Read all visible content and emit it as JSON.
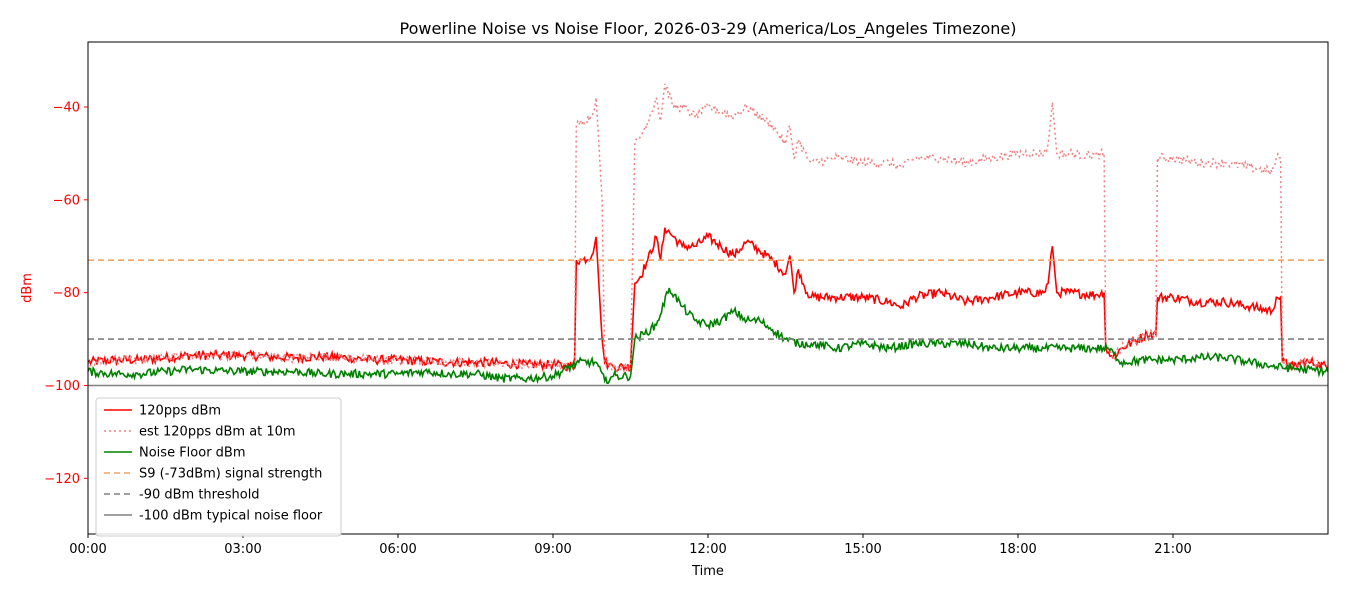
{
  "chart_data": {
    "type": "line",
    "title": "Powerline Noise vs Noise Floor, 2026-03-29 (America/Los_Angeles Timezone)",
    "xlabel": "Time",
    "ylabel": "dBm",
    "xlim": [
      "00:00",
      "24:00"
    ],
    "ylim": [
      -132,
      -26
    ],
    "x_ticks": [
      "00:00",
      "03:00",
      "06:00",
      "09:00",
      "12:00",
      "15:00",
      "18:00",
      "21:00"
    ],
    "y_ticks": [
      -40,
      -60,
      -80,
      -100,
      -120
    ],
    "grid": false,
    "legend_position": "lower-left",
    "series": [
      {
        "name": "120pps dBm",
        "color": "#ff0000",
        "style": "solid",
        "x": [
          "00:00",
          "00:30",
          "01:00",
          "01:30",
          "02:00",
          "02:30",
          "03:00",
          "03:30",
          "04:00",
          "04:30",
          "05:00",
          "05:30",
          "06:00",
          "06:30",
          "07:00",
          "07:30",
          "08:00",
          "08:30",
          "09:00",
          "09:25",
          "09:27",
          "09:35",
          "09:45",
          "09:50",
          "09:52",
          "09:57",
          "10:00",
          "10:05",
          "10:10",
          "10:30",
          "10:35",
          "10:40",
          "10:50",
          "11:00",
          "11:05",
          "11:10",
          "11:20",
          "11:30",
          "11:45",
          "12:00",
          "12:15",
          "12:30",
          "12:45",
          "13:00",
          "13:15",
          "13:30",
          "13:35",
          "13:40",
          "13:45",
          "13:55",
          "14:00",
          "14:30",
          "15:00",
          "15:30",
          "15:45",
          "16:00",
          "16:30",
          "17:00",
          "17:30",
          "18:00",
          "18:30",
          "18:35",
          "18:40",
          "18:45",
          "19:00",
          "19:30",
          "19:40",
          "19:42",
          "19:50",
          "20:00",
          "20:30",
          "20:40",
          "20:42",
          "21:00",
          "21:30",
          "22:00",
          "22:30",
          "22:55",
          "23:00",
          "23:05",
          "23:07",
          "23:20",
          "23:30",
          "23:40",
          "24:00"
        ],
        "values": [
          -95,
          -94.5,
          -94.5,
          -94,
          -93.5,
          -93.5,
          -93.5,
          -93.8,
          -94,
          -93.8,
          -94,
          -94.5,
          -94.5,
          -94.8,
          -95,
          -95,
          -95.2,
          -95.5,
          -95.5,
          -96,
          -73,
          -73,
          -72,
          -68,
          -74,
          -90,
          -95,
          -95.5,
          -96,
          -96,
          -78,
          -77,
          -73,
          -68,
          -73,
          -66,
          -68,
          -70,
          -70,
          -68,
          -70,
          -72,
          -69,
          -71,
          -73,
          -76,
          -72,
          -80,
          -75,
          -80,
          -81,
          -81,
          -81,
          -82,
          -83,
          -81,
          -80,
          -82,
          -81,
          -80,
          -80,
          -78,
          -70,
          -80,
          -80,
          -80.5,
          -80,
          -92,
          -94,
          -92,
          -89,
          -89,
          -81,
          -81,
          -82,
          -82,
          -83,
          -84,
          -81,
          -81,
          -95,
          -96,
          -95,
          -95,
          -96
        ]
      },
      {
        "name": "est 120pps dBm at 10m",
        "color": "#f08080",
        "style": "dotted",
        "x": [
          "00:00",
          "00:30",
          "01:00",
          "01:30",
          "02:00",
          "02:30",
          "03:00",
          "03:30",
          "04:00",
          "04:30",
          "05:00",
          "05:30",
          "06:00",
          "06:30",
          "07:00",
          "07:30",
          "08:00",
          "08:30",
          "09:00",
          "09:25",
          "09:27",
          "09:35",
          "09:45",
          "09:50",
          "09:52",
          "09:57",
          "10:00",
          "10:05",
          "10:10",
          "10:30",
          "10:35",
          "10:40",
          "10:50",
          "11:00",
          "11:05",
          "11:10",
          "11:20",
          "11:30",
          "11:45",
          "12:00",
          "12:15",
          "12:30",
          "12:45",
          "13:00",
          "13:15",
          "13:30",
          "13:35",
          "13:40",
          "13:45",
          "13:55",
          "14:00",
          "14:30",
          "15:00",
          "15:30",
          "15:45",
          "16:00",
          "16:30",
          "17:00",
          "17:30",
          "18:00",
          "18:30",
          "18:35",
          "18:40",
          "18:45",
          "19:00",
          "19:30",
          "19:40",
          "19:42",
          "19:50",
          "20:00",
          "20:30",
          "20:40",
          "20:42",
          "21:00",
          "21:30",
          "22:00",
          "22:30",
          "22:55",
          "23:00",
          "23:05",
          "23:07",
          "23:20",
          "23:30",
          "23:40",
          "24:00"
        ],
        "values": [
          -95,
          -94.5,
          -94.5,
          -94,
          -93.5,
          -93.5,
          -93.5,
          -93.8,
          -94,
          -93.8,
          -94,
          -94.5,
          -94.5,
          -94.8,
          -95,
          -95,
          -95.2,
          -95.5,
          -95.5,
          -96,
          -44,
          -43,
          -42,
          -38,
          -44,
          -60,
          -95,
          -95.5,
          -96,
          -96,
          -48,
          -47,
          -43,
          -38,
          -43,
          -35,
          -40,
          -40,
          -42,
          -40,
          -41,
          -42,
          -40,
          -42,
          -44,
          -48,
          -44,
          -51,
          -47,
          -51,
          -52,
          -51,
          -52,
          -52,
          -53,
          -51,
          -51,
          -52,
          -51,
          -50,
          -50,
          -48,
          -39,
          -50,
          -50,
          -50.5,
          -50,
          -92,
          -94,
          -92,
          -89,
          -89,
          -51,
          -51,
          -52,
          -52,
          -53,
          -54,
          -51,
          -51,
          -95,
          -96,
          -95,
          -95,
          -96
        ]
      },
      {
        "name": "Noise Floor dBm",
        "color": "#008000",
        "style": "solid",
        "x": [
          "00:00",
          "00:30",
          "01:00",
          "01:30",
          "02:00",
          "02:30",
          "03:00",
          "03:30",
          "04:00",
          "04:30",
          "05:00",
          "05:30",
          "06:00",
          "06:30",
          "07:00",
          "07:30",
          "08:00",
          "08:30",
          "09:00",
          "09:30",
          "09:50",
          "10:00",
          "10:10",
          "10:30",
          "10:35",
          "10:45",
          "11:00",
          "11:15",
          "11:30",
          "11:45",
          "12:00",
          "12:15",
          "12:30",
          "12:45",
          "13:00",
          "13:15",
          "13:30",
          "13:45",
          "14:00",
          "14:30",
          "15:00",
          "15:30",
          "16:00",
          "16:30",
          "17:00",
          "17:30",
          "18:00",
          "18:30",
          "19:00",
          "19:30",
          "19:45",
          "20:00",
          "20:30",
          "21:00",
          "21:30",
          "22:00",
          "22:30",
          "23:00",
          "23:30",
          "24:00"
        ],
        "values": [
          -97,
          -97.5,
          -97.5,
          -97,
          -96.5,
          -96.8,
          -97,
          -97,
          -97,
          -97.5,
          -97.5,
          -97.5,
          -97.5,
          -97,
          -97.5,
          -97.5,
          -98.5,
          -98.5,
          -98,
          -95,
          -95,
          -99,
          -98,
          -98,
          -90,
          -89,
          -87,
          -79,
          -83,
          -86,
          -87,
          -86,
          -84,
          -86,
          -86,
          -88,
          -90,
          -91,
          -91,
          -92,
          -91,
          -92,
          -91,
          -91,
          -91,
          -92,
          -92,
          -92,
          -92,
          -92,
          -92,
          -95,
          -94.5,
          -94.5,
          -94,
          -94,
          -95,
          -96,
          -96.5,
          -97
        ]
      },
      {
        "name": "S9 (-73dBm) signal strength",
        "color": "#f4a460",
        "style": "dashed",
        "x": [
          "00:00",
          "24:00"
        ],
        "values": [
          -73,
          -73
        ]
      },
      {
        "name": "-90 dBm threshold",
        "color": "#808080",
        "style": "dashed",
        "x": [
          "00:00",
          "24:00"
        ],
        "values": [
          -90,
          -90
        ]
      },
      {
        "name": "-100 dBm typical noise floor",
        "color": "#808080",
        "style": "solid",
        "x": [
          "00:00",
          "24:00"
        ],
        "values": [
          -100,
          -100
        ]
      }
    ]
  }
}
